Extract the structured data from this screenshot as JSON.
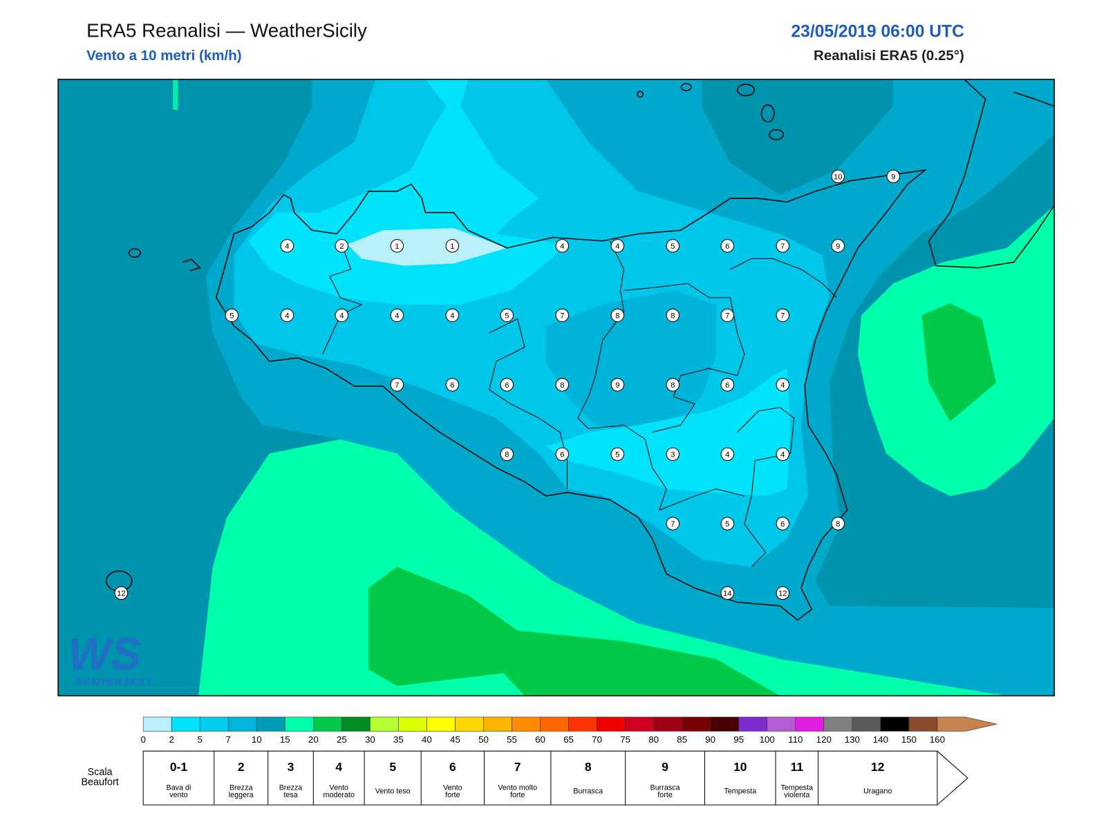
{
  "header": {
    "title": "ERA5 Reanalisi — WeatherSicily",
    "subtitle": "Vento a 10 metri (km/h)",
    "datetime": "23/05/2019 06:00 UTC",
    "source": "Reanalisi ERA5 (0.25°)"
  },
  "stations": [
    4,
    2,
    1,
    1,
    4,
    4,
    5,
    6,
    7,
    9,
    5,
    4,
    4,
    4,
    4,
    5,
    7,
    8,
    8,
    7,
    7,
    7,
    6,
    6,
    8,
    9,
    8,
    6,
    4,
    8,
    6,
    5,
    3,
    4,
    4,
    7,
    5,
    6,
    8,
    14,
    12,
    12,
    10,
    9
  ],
  "colorbar": {
    "ticks": [
      0,
      2,
      5,
      7,
      10,
      15,
      20,
      25,
      30,
      35,
      40,
      45,
      50,
      55,
      60,
      65,
      70,
      75,
      80,
      85,
      90,
      95,
      100,
      110,
      120,
      130,
      140,
      150,
      160
    ],
    "colors": [
      "#baf0fa",
      "#00e3fb",
      "#00cdef",
      "#00b5dc",
      "#009cb8",
      "#00ffaa",
      "#00c848",
      "#008c23",
      "#b4ff32",
      "#dcff00",
      "#ffff00",
      "#ffd700",
      "#ffb400",
      "#ff8c00",
      "#ff6400",
      "#ff3200",
      "#f00000",
      "#d2001e",
      "#a00014",
      "#780000",
      "#4a0000",
      "#7b2bd0",
      "#b45ad2",
      "#e01ee0",
      "#808080",
      "#5a5a5a",
      "#000000",
      "#8b4a2b",
      "#c8824b"
    ]
  },
  "beaufort": {
    "label": [
      "Scala",
      "Beaufort"
    ],
    "levels": [
      {
        "force": "0-1",
        "name": [
          "Bava di",
          "vento"
        ]
      },
      {
        "force": "2",
        "name": [
          "Brezza",
          "leggera"
        ]
      },
      {
        "force": "3",
        "name": [
          "Brezza",
          "tesa"
        ]
      },
      {
        "force": "4",
        "name": [
          "Vento",
          "moderato"
        ]
      },
      {
        "force": "5",
        "name": [
          "Vento teso"
        ]
      },
      {
        "force": "6",
        "name": [
          "Vento",
          "forte"
        ]
      },
      {
        "force": "7",
        "name": [
          "Vento molto",
          "forte"
        ]
      },
      {
        "force": "8",
        "name": [
          "Burrasca"
        ]
      },
      {
        "force": "9",
        "name": [
          "Burrasca",
          "forte"
        ]
      },
      {
        "force": "10",
        "name": [
          "Tempesta"
        ]
      },
      {
        "force": "11",
        "name": [
          "Tempesta",
          "violenta"
        ]
      },
      {
        "force": "12",
        "name": [
          "Uragano"
        ]
      }
    ]
  },
  "logo": {
    "mark": "WS",
    "text": "WEATHER SICILY"
  }
}
